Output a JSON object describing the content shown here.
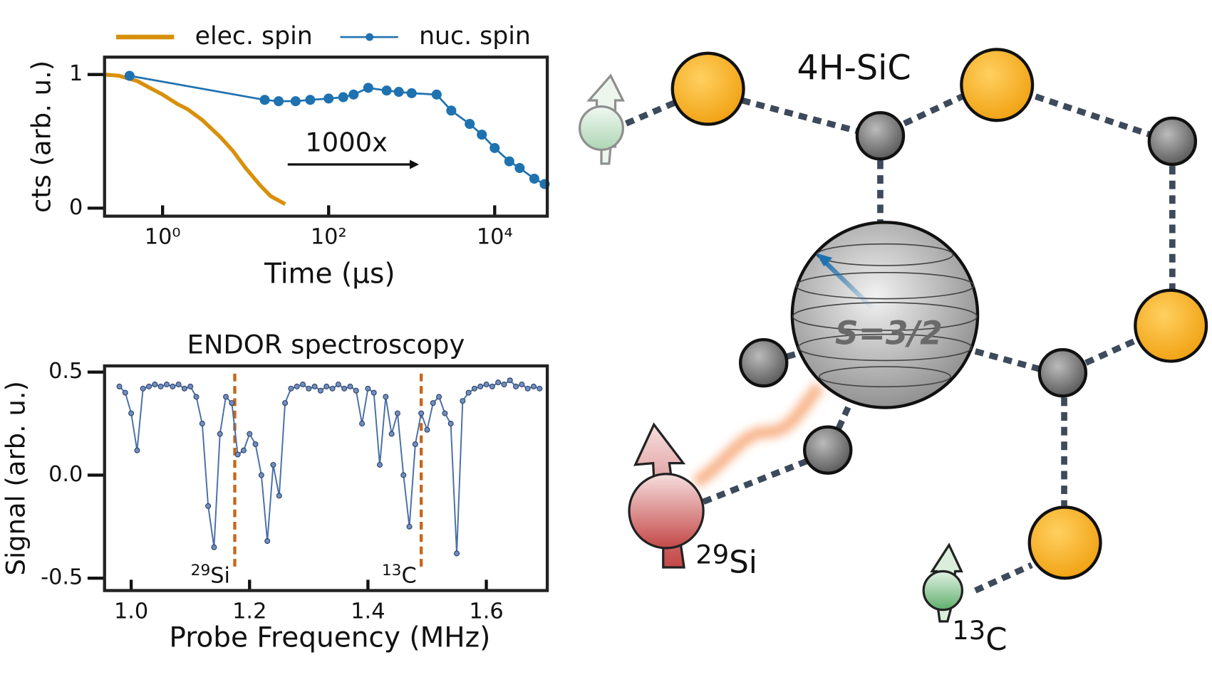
{
  "chart_data": [
    {
      "type": "line",
      "xscale": "log",
      "xlabel": "Time (μs)",
      "ylabel": "cts (arb. u.)",
      "xlim": [
        0.2,
        43000
      ],
      "ylim": [
        -0.06,
        1.13
      ],
      "xticks": [
        {
          "value": 1,
          "label": "10⁰"
        },
        {
          "value": 100,
          "label": "10²"
        },
        {
          "value": 10000,
          "label": "10⁴"
        }
      ],
      "yticks": [
        0,
        1
      ],
      "legend": "top",
      "annotation": "1000x",
      "series": [
        {
          "name": "elec. spin",
          "color": "#d8900c",
          "marker": false,
          "x": [
            0.2,
            0.3,
            0.5,
            0.7,
            1,
            1.5,
            2,
            3,
            5,
            7,
            10,
            15,
            20,
            30
          ],
          "values": [
            1,
            0.99,
            0.95,
            0.9,
            0.85,
            0.78,
            0.74,
            0.66,
            0.53,
            0.43,
            0.3,
            0.17,
            0.09,
            0.03
          ]
        },
        {
          "name": "nuc. spin",
          "color": "#1f72b0",
          "marker": true,
          "x": [
            0.4,
            17,
            25,
            40,
            60,
            100,
            150,
            200,
            300,
            500,
            700,
            1000,
            2000,
            3000,
            5000,
            7000,
            10000,
            15000,
            20000,
            30000,
            40000
          ],
          "values": [
            0.99,
            0.81,
            0.8,
            0.8,
            0.81,
            0.82,
            0.83,
            0.85,
            0.9,
            0.88,
            0.87,
            0.86,
            0.85,
            0.73,
            0.63,
            0.55,
            0.45,
            0.35,
            0.3,
            0.22,
            0.18
          ]
        }
      ]
    },
    {
      "type": "line",
      "title": "ENDOR spectroscopy",
      "xlabel": "Probe Frequency (MHz)",
      "ylabel": "Signal (arb. u.)",
      "xlim": [
        0.955,
        1.703
      ],
      "ylim": [
        -0.56,
        0.53
      ],
      "xticks": [
        {
          "value": 1.0,
          "label": "1.0"
        },
        1.2,
        1.4,
        1.6
      ],
      "yticks": [
        {
          "value": -0.5,
          "label": "-0.5"
        },
        {
          "value": 0,
          "label": "0.0"
        },
        0.5
      ],
      "annotations": [
        {
          "x": 1.175,
          "mass": "29",
          "symbol": "Si"
        },
        {
          "x": 1.49,
          "mass": "13",
          "symbol": "C"
        }
      ],
      "series": [
        {
          "color": "#4a6fa8",
          "marker": true,
          "x": [
            0.98,
            0.99,
            1.0,
            1.01,
            1.02,
            1.03,
            1.04,
            1.05,
            1.06,
            1.07,
            1.08,
            1.09,
            1.1,
            1.11,
            1.12,
            1.13,
            1.14,
            1.15,
            1.16,
            1.17,
            1.18,
            1.19,
            1.2,
            1.21,
            1.22,
            1.23,
            1.24,
            1.25,
            1.26,
            1.27,
            1.28,
            1.29,
            1.3,
            1.31,
            1.32,
            1.33,
            1.34,
            1.35,
            1.36,
            1.37,
            1.38,
            1.39,
            1.4,
            1.41,
            1.42,
            1.43,
            1.44,
            1.45,
            1.46,
            1.47,
            1.48,
            1.49,
            1.5,
            1.51,
            1.52,
            1.53,
            1.54,
            1.55,
            1.56,
            1.57,
            1.58,
            1.59,
            1.6,
            1.61,
            1.62,
            1.63,
            1.64,
            1.65,
            1.66,
            1.67,
            1.68,
            1.69
          ],
          "values": [
            0.43,
            0.4,
            0.3,
            0.12,
            0.42,
            0.43,
            0.44,
            0.43,
            0.44,
            0.43,
            0.44,
            0.42,
            0.43,
            0.38,
            0.25,
            -0.15,
            -0.35,
            0.2,
            0.38,
            0.35,
            0.1,
            0.12,
            0.2,
            0.15,
            0.0,
            -0.32,
            0.05,
            -0.1,
            0.35,
            0.42,
            0.43,
            0.44,
            0.42,
            0.43,
            0.41,
            0.43,
            0.42,
            0.44,
            0.42,
            0.43,
            0.41,
            0.25,
            0.42,
            0.4,
            0.05,
            0.38,
            0.2,
            0.3,
            0.0,
            -0.25,
            0.15,
            0.3,
            0.22,
            0.35,
            0.38,
            0.3,
            0.25,
            -0.38,
            0.36,
            0.4,
            0.42,
            0.43,
            0.44,
            0.43,
            0.45,
            0.44,
            0.46,
            0.43,
            0.44,
            0.42,
            0.43,
            0.42
          ]
        }
      ]
    }
  ],
  "diagram": {
    "label": "4H-SiC",
    "spin": "S=3/2",
    "si_isotope": {
      "mass": "29",
      "symbol": "Si"
    },
    "c_isotope": {
      "mass": "13",
      "symbol": "C"
    }
  }
}
